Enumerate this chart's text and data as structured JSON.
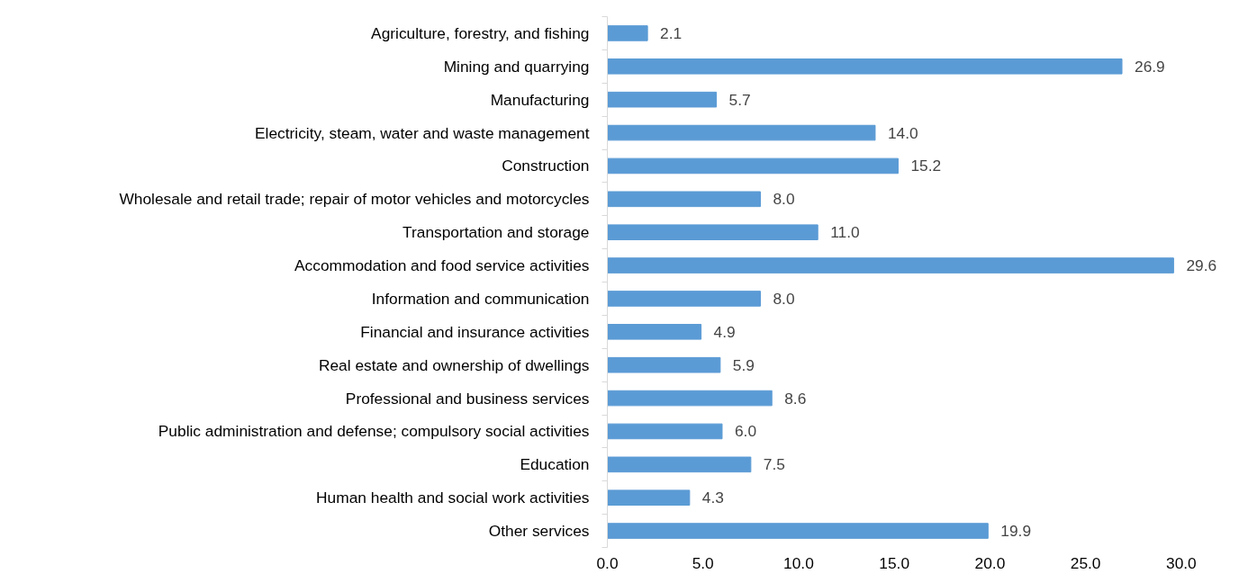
{
  "chart_data": {
    "type": "bar",
    "orientation": "horizontal",
    "categories": [
      "Agriculture, forestry, and fishing",
      "Mining and quarrying",
      "Manufacturing",
      "Electricity, steam, water and waste management",
      "Construction",
      "Wholesale and retail trade; repair of motor vehicles and motorcycles",
      "Transportation and storage",
      "Accommodation and food service activities",
      "Information and communication",
      "Financial and insurance activities",
      "Real estate and ownership of dwellings",
      "Professional and business services",
      "Public administration and defense; compulsory social activities",
      "Education",
      "Human health and social work activities",
      "Other services"
    ],
    "values": [
      2.1,
      26.9,
      5.7,
      14.0,
      15.2,
      8.0,
      11.0,
      29.6,
      8.0,
      4.9,
      5.9,
      8.6,
      6.0,
      7.5,
      4.3,
      19.9
    ],
    "value_labels": [
      "2.1",
      "26.9",
      "5.7",
      "14.0",
      "15.2",
      "8.0",
      "11.0",
      "29.6",
      "8.0",
      "4.9",
      "5.9",
      "8.6",
      "6.0",
      "7.5",
      "4.3",
      "19.9"
    ],
    "color": "#5b9bd5",
    "xlim": [
      0,
      30
    ],
    "xticks": [
      {
        "value": 0,
        "label": "0.0"
      },
      {
        "value": 5,
        "label": "5.0"
      },
      {
        "value": 10,
        "label": "10.0"
      },
      {
        "value": 15,
        "label": "15.0"
      },
      {
        "value": 20,
        "label": "20.0"
      },
      {
        "value": 25,
        "label": "25.0"
      },
      {
        "value": 30,
        "label": "30.0"
      }
    ],
    "grid": false
  }
}
